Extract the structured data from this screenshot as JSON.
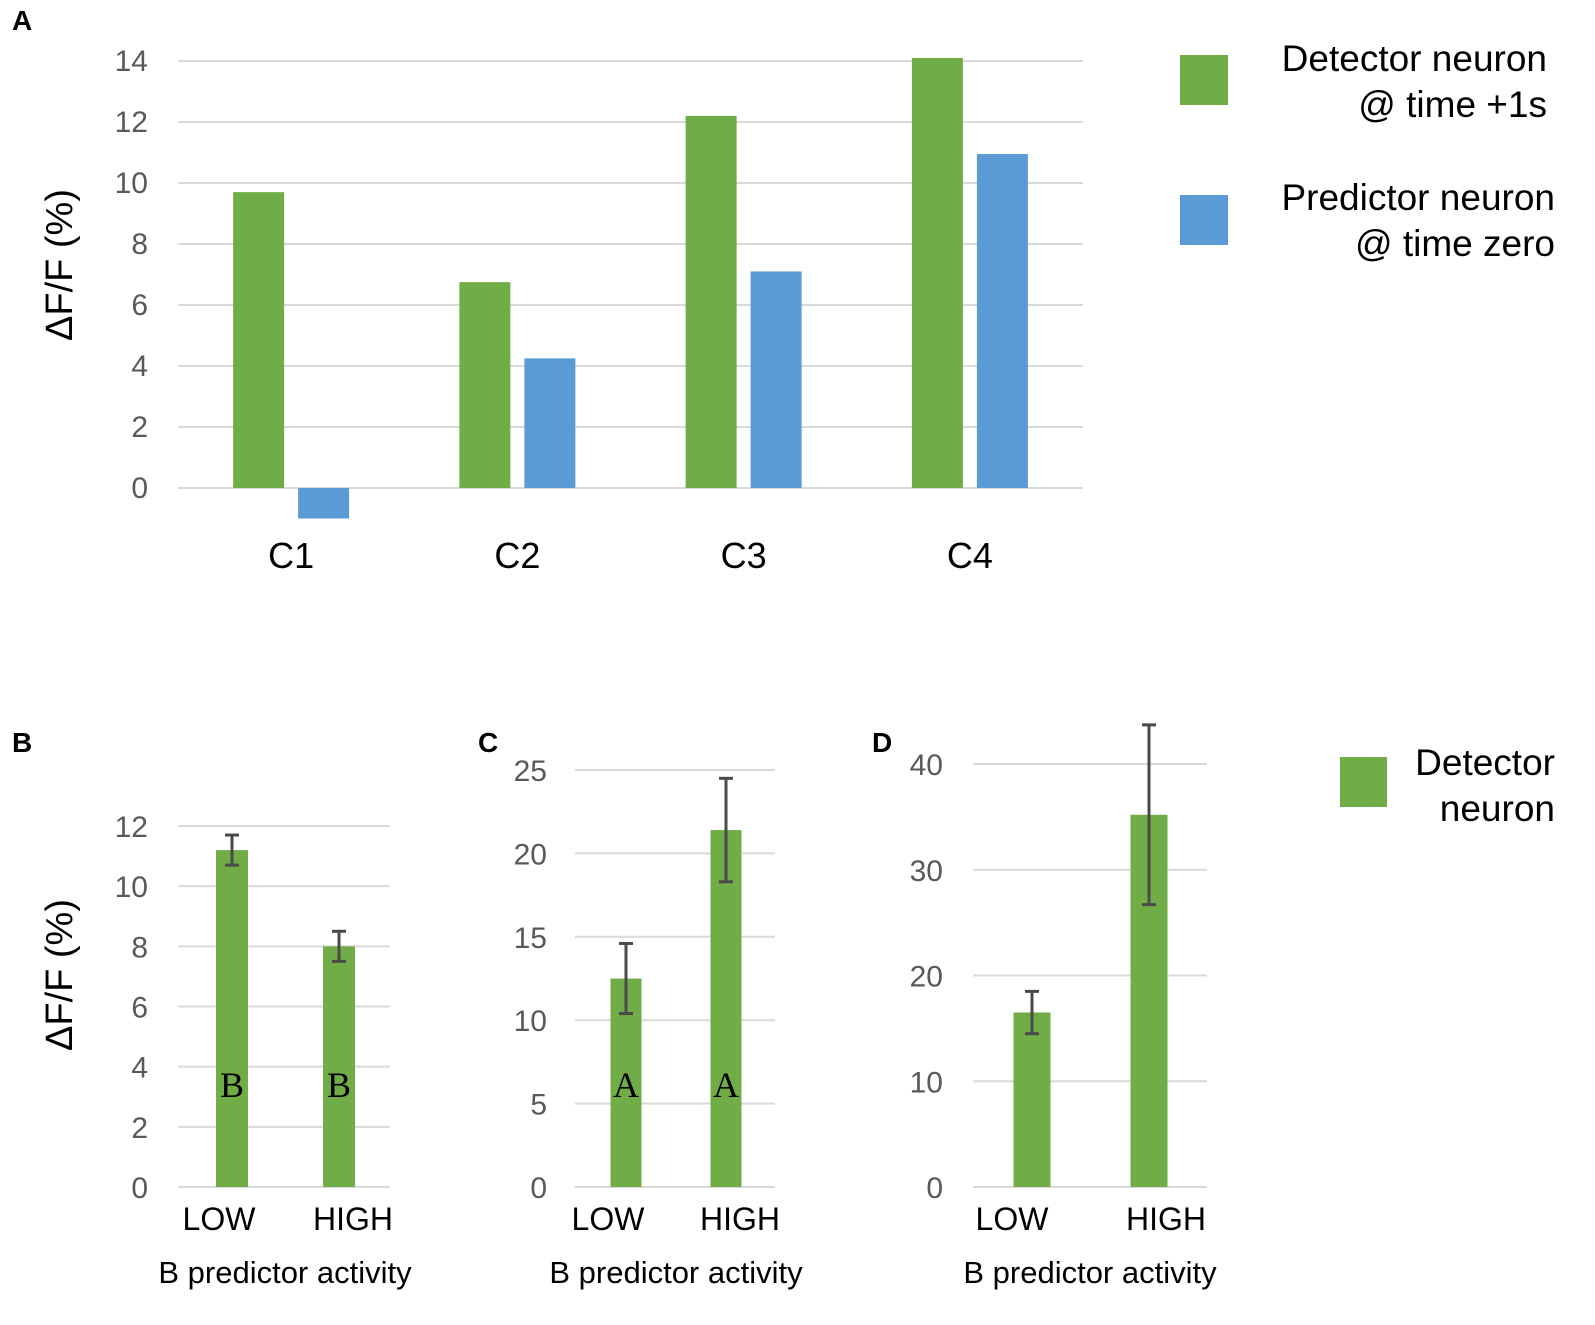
{
  "colors": {
    "detector": "#70ad47",
    "predictor": "#5b9bd5"
  },
  "chart_data": [
    {
      "panel": "A",
      "type": "bar",
      "ylabel": "ΔF/F (%)",
      "ylim": [
        -1,
        14
      ],
      "yticks": [
        "0",
        "2",
        "4",
        "6",
        "8",
        "10",
        "12",
        "14"
      ],
      "categories": [
        "C1",
        "C2",
        "C3",
        "C4"
      ],
      "series": [
        {
          "name": "Detector neuron @ time +1s",
          "legend": [
            "Detector neuron",
            "@ time +1s"
          ],
          "values": [
            9.7,
            6.75,
            12.2,
            14.1
          ]
        },
        {
          "name": "Predictor neuron @ time zero",
          "legend": [
            "Predictor neuron",
            "@ time zero"
          ],
          "values": [
            -1.0,
            4.25,
            7.1,
            10.95
          ]
        }
      ]
    },
    {
      "panel": "B",
      "type": "bar",
      "ylabel": "ΔF/F (%)",
      "xlabel": "B predictor activity",
      "ylim": [
        0,
        12
      ],
      "yticks": [
        "0",
        "2",
        "4",
        "6",
        "8",
        "10",
        "12"
      ],
      "categories": [
        "LOW",
        "HIGH"
      ],
      "series": [
        {
          "name": "Detector neuron",
          "values": [
            11.2,
            8.0
          ],
          "errors": [
            0.5,
            0.5
          ]
        }
      ],
      "annotations": [
        "B",
        "B"
      ]
    },
    {
      "panel": "C",
      "type": "bar",
      "xlabel": "B predictor activity",
      "ylim": [
        0,
        25
      ],
      "yticks": [
        "0",
        "5",
        "10",
        "15",
        "20",
        "25"
      ],
      "categories": [
        "LOW",
        "HIGH"
      ],
      "series": [
        {
          "name": "Detector neuron",
          "values": [
            12.5,
            21.4
          ],
          "errors": [
            2.1,
            3.1
          ]
        }
      ],
      "annotations": [
        "A",
        "A"
      ]
    },
    {
      "panel": "D",
      "type": "bar",
      "xlabel": "B predictor activity",
      "ylim": [
        0,
        40
      ],
      "yticks": [
        "0",
        "10",
        "20",
        "30",
        "40"
      ],
      "categories": [
        "LOW",
        "HIGH"
      ],
      "series": [
        {
          "name": "Detector neuron",
          "values": [
            16.5,
            35.2
          ],
          "errors": [
            2.0,
            8.5
          ]
        }
      ]
    }
  ],
  "legend_bottom": [
    "Detector",
    "neuron"
  ]
}
